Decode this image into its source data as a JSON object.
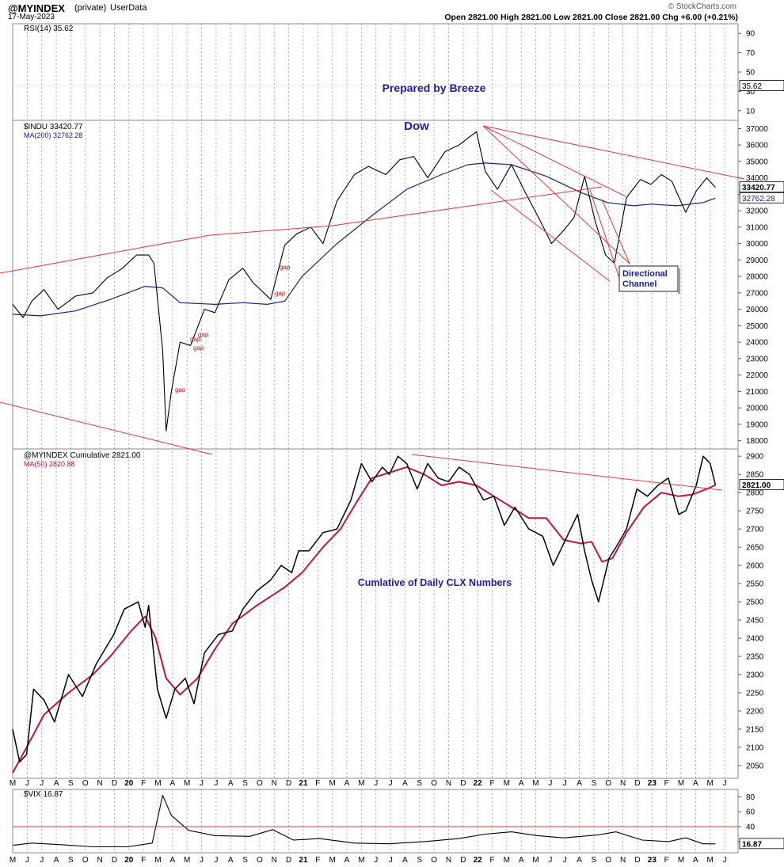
{
  "header": {
    "symbol": "@MYINDEX",
    "private_tag": "(private)",
    "userdata_tag": "UserData",
    "date": "17-May-2023",
    "ohlc": "Open 2821.00  High 2821.00  Low 2821.00  Close 2821.00  Chg +6.00 (+0.21%)",
    "watermark": "© StockCharts.com"
  },
  "annotations": {
    "prepared_by": "Prepared by Breeze",
    "dow": "Dow",
    "channel_line1": "Directional",
    "channel_line2": "Channel",
    "cumulative_note": "Cumlative of Daily CLX Numbers",
    "gap_labels": [
      "gap",
      "gap",
      "gap",
      "gap",
      "gap",
      "gao"
    ]
  },
  "colors": {
    "price": "#000000",
    "ma_blue": "#1a237e",
    "ma_red": "#c2143c",
    "trend": "#e53935",
    "grid": "#6f6fd8",
    "annotation_blue": "#1b1bb3",
    "gap_red": "#d01010"
  },
  "chart_data": [
    {
      "type": "line",
      "title": "RSI(14) 35.62",
      "series": [
        {
          "name": "RSI(14)",
          "values": [
            35.62
          ]
        }
      ],
      "y_ticks": [
        10,
        30,
        50,
        70,
        90
      ],
      "last_label": "35.62"
    },
    {
      "type": "line",
      "title": "$INDU 33420.77",
      "legend": [
        "$INDU 33420.77",
        "MA(200) 32762.28"
      ],
      "ylim": [
        17500,
        37500
      ],
      "y_ticks": [
        18000,
        19000,
        20000,
        21000,
        22000,
        23000,
        24000,
        25000,
        26000,
        27000,
        28000,
        29000,
        30000,
        31000,
        32000,
        33000,
        34000,
        35000,
        36000,
        37000
      ],
      "series": [
        {
          "name": "$INDU",
          "points": [
            [
              2019.34,
              26300
            ],
            [
              2019.4,
              25500
            ],
            [
              2019.45,
              26500
            ],
            [
              2019.52,
              27200
            ],
            [
              2019.6,
              26000
            ],
            [
              2019.7,
              26800
            ],
            [
              2019.8,
              27000
            ],
            [
              2019.88,
              27900
            ],
            [
              2019.97,
              28500
            ],
            [
              2020.05,
              29300
            ],
            [
              2020.12,
              29300
            ],
            [
              2020.15,
              28800
            ],
            [
              2020.2,
              23500
            ],
            [
              2020.22,
              18600
            ],
            [
              2020.25,
              21000
            ],
            [
              2020.3,
              24000
            ],
            [
              2020.36,
              23800
            ],
            [
              2020.44,
              26000
            ],
            [
              2020.5,
              25800
            ],
            [
              2020.58,
              27800
            ],
            [
              2020.66,
              28500
            ],
            [
              2020.72,
              27600
            ],
            [
              2020.82,
              26600
            ],
            [
              2020.9,
              29900
            ],
            [
              2020.97,
              30600
            ],
            [
              2021.05,
              31000
            ],
            [
              2021.12,
              30000
            ],
            [
              2021.2,
              32600
            ],
            [
              2021.3,
              34200
            ],
            [
              2021.38,
              34700
            ],
            [
              2021.48,
              34200
            ],
            [
              2021.56,
              35100
            ],
            [
              2021.64,
              35300
            ],
            [
              2021.72,
              34000
            ],
            [
              2021.82,
              35600
            ],
            [
              2021.9,
              36000
            ],
            [
              2021.96,
              36500
            ],
            [
              2022.0,
              36800
            ],
            [
              2022.05,
              34400
            ],
            [
              2022.12,
              33300
            ],
            [
              2022.2,
              34800
            ],
            [
              2022.28,
              33100
            ],
            [
              2022.36,
              31500
            ],
            [
              2022.43,
              30000
            ],
            [
              2022.5,
              30800
            ],
            [
              2022.56,
              31600
            ],
            [
              2022.62,
              34100
            ],
            [
              2022.68,
              31400
            ],
            [
              2022.74,
              29300
            ],
            [
              2022.79,
              28800
            ],
            [
              2022.86,
              32800
            ],
            [
              2022.94,
              33900
            ],
            [
              2023.0,
              33600
            ],
            [
              2023.06,
              34200
            ],
            [
              2023.12,
              33800
            ],
            [
              2023.2,
              31900
            ],
            [
              2023.26,
              33200
            ],
            [
              2023.32,
              34000
            ],
            [
              2023.37,
              33420.77
            ]
          ]
        },
        {
          "name": "MA(200)",
          "points": [
            [
              2019.34,
              25700
            ],
            [
              2019.5,
              25600
            ],
            [
              2019.7,
              25900
            ],
            [
              2019.9,
              26600
            ],
            [
              2020.1,
              27400
            ],
            [
              2020.2,
              27300
            ],
            [
              2020.3,
              26400
            ],
            [
              2020.5,
              26300
            ],
            [
              2020.66,
              26400
            ],
            [
              2020.8,
              26300
            ],
            [
              2020.9,
              26500
            ],
            [
              2021.0,
              28000
            ],
            [
              2021.2,
              30000
            ],
            [
              2021.4,
              31700
            ],
            [
              2021.6,
              33300
            ],
            [
              2021.8,
              34200
            ],
            [
              2021.95,
              34800
            ],
            [
              2022.05,
              34900
            ],
            [
              2022.2,
              34800
            ],
            [
              2022.4,
              34100
            ],
            [
              2022.6,
              33100
            ],
            [
              2022.75,
              32500
            ],
            [
              2022.9,
              32300
            ],
            [
              2023.0,
              32400
            ],
            [
              2023.15,
              32300
            ],
            [
              2023.3,
              32500
            ],
            [
              2023.37,
              32762.28
            ]
          ]
        }
      ],
      "last_labels": [
        "33420.77",
        "32762.28"
      ]
    },
    {
      "type": "line",
      "title": "@MYINDEX Cumulative 2821.00",
      "legend": [
        "@MYINDEX Cumulative 2821.00",
        "MA(50) 2820.88"
      ],
      "ylim": [
        2015,
        2920
      ],
      "y_ticks": [
        2050,
        2100,
        2150,
        2200,
        2250,
        2300,
        2350,
        2400,
        2450,
        2500,
        2550,
        2600,
        2650,
        2700,
        2750,
        2800,
        2850,
        2900
      ],
      "series": [
        {
          "name": "@MYINDEX Cumulative",
          "points": [
            [
              2019.34,
              2150
            ],
            [
              2019.38,
              2060
            ],
            [
              2019.42,
              2080
            ],
            [
              2019.46,
              2260
            ],
            [
              2019.52,
              2230
            ],
            [
              2019.58,
              2170
            ],
            [
              2019.66,
              2300
            ],
            [
              2019.74,
              2240
            ],
            [
              2019.82,
              2330
            ],
            [
              2019.92,
              2410
            ],
            [
              2019.98,
              2480
            ],
            [
              2020.06,
              2500
            ],
            [
              2020.1,
              2430
            ],
            [
              2020.12,
              2490
            ],
            [
              2020.17,
              2260
            ],
            [
              2020.22,
              2180
            ],
            [
              2020.27,
              2260
            ],
            [
              2020.33,
              2290
            ],
            [
              2020.38,
              2220
            ],
            [
              2020.44,
              2360
            ],
            [
              2020.52,
              2410
            ],
            [
              2020.6,
              2420
            ],
            [
              2020.66,
              2480
            ],
            [
              2020.74,
              2530
            ],
            [
              2020.82,
              2560
            ],
            [
              2020.88,
              2600
            ],
            [
              2020.94,
              2580
            ],
            [
              2020.98,
              2640
            ],
            [
              2021.04,
              2640
            ],
            [
              2021.12,
              2690
            ],
            [
              2021.2,
              2700
            ],
            [
              2021.28,
              2780
            ],
            [
              2021.34,
              2880
            ],
            [
              2021.4,
              2830
            ],
            [
              2021.46,
              2870
            ],
            [
              2021.5,
              2850
            ],
            [
              2021.55,
              2900
            ],
            [
              2021.6,
              2880
            ],
            [
              2021.66,
              2810
            ],
            [
              2021.72,
              2880
            ],
            [
              2021.78,
              2840
            ],
            [
              2021.84,
              2830
            ],
            [
              2021.9,
              2870
            ],
            [
              2021.96,
              2850
            ],
            [
              2022.04,
              2780
            ],
            [
              2022.1,
              2790
            ],
            [
              2022.16,
              2710
            ],
            [
              2022.22,
              2760
            ],
            [
              2022.3,
              2700
            ],
            [
              2022.38,
              2680
            ],
            [
              2022.44,
              2600
            ],
            [
              2022.52,
              2680
            ],
            [
              2022.58,
              2740
            ],
            [
              2022.62,
              2640
            ],
            [
              2022.66,
              2560
            ],
            [
              2022.7,
              2500
            ],
            [
              2022.76,
              2620
            ],
            [
              2022.8,
              2650
            ],
            [
              2022.86,
              2700
            ],
            [
              2022.92,
              2810
            ],
            [
              2022.98,
              2790
            ],
            [
              2023.04,
              2820
            ],
            [
              2023.1,
              2840
            ],
            [
              2023.16,
              2740
            ],
            [
              2023.2,
              2750
            ],
            [
              2023.26,
              2820
            ],
            [
              2023.3,
              2900
            ],
            [
              2023.34,
              2880
            ],
            [
              2023.37,
              2821
            ]
          ]
        },
        {
          "name": "MA(50)",
          "points": [
            [
              2019.34,
              2030
            ],
            [
              2019.42,
              2100
            ],
            [
              2019.52,
              2190
            ],
            [
              2019.66,
              2250
            ],
            [
              2019.8,
              2300
            ],
            [
              2019.9,
              2350
            ],
            [
              2020.02,
              2420
            ],
            [
              2020.1,
              2460
            ],
            [
              2020.16,
              2400
            ],
            [
              2020.22,
              2290
            ],
            [
              2020.3,
              2245
            ],
            [
              2020.4,
              2290
            ],
            [
              2020.5,
              2370
            ],
            [
              2020.6,
              2440
            ],
            [
              2020.74,
              2490
            ],
            [
              2020.9,
              2540
            ],
            [
              2021.0,
              2580
            ],
            [
              2021.12,
              2650
            ],
            [
              2021.22,
              2700
            ],
            [
              2021.32,
              2780
            ],
            [
              2021.4,
              2840
            ],
            [
              2021.5,
              2855
            ],
            [
              2021.6,
              2870
            ],
            [
              2021.7,
              2850
            ],
            [
              2021.8,
              2820
            ],
            [
              2021.9,
              2830
            ],
            [
              2022.0,
              2820
            ],
            [
              2022.1,
              2790
            ],
            [
              2022.2,
              2760
            ],
            [
              2022.3,
              2730
            ],
            [
              2022.4,
              2730
            ],
            [
              2022.5,
              2670
            ],
            [
              2022.6,
              2660
            ],
            [
              2022.66,
              2665
            ],
            [
              2022.72,
              2610
            ],
            [
              2022.78,
              2620
            ],
            [
              2022.86,
              2690
            ],
            [
              2022.96,
              2760
            ],
            [
              2023.06,
              2800
            ],
            [
              2023.16,
              2790
            ],
            [
              2023.24,
              2795
            ],
            [
              2023.32,
              2810
            ],
            [
              2023.37,
              2820.88
            ]
          ]
        }
      ],
      "last_label": "2821.00"
    },
    {
      "type": "line",
      "title": "$VIX 16.87",
      "ylim": [
        5,
        90
      ],
      "y_ticks": [
        20,
        40,
        60,
        80
      ],
      "series": [
        {
          "name": "$VIX",
          "points": [
            [
              2019.34,
              15
            ],
            [
              2019.45,
              18
            ],
            [
              2019.6,
              16
            ],
            [
              2019.8,
              13
            ],
            [
              2020.0,
              13
            ],
            [
              2020.14,
              18
            ],
            [
              2020.2,
              82
            ],
            [
              2020.25,
              55
            ],
            [
              2020.35,
              35
            ],
            [
              2020.5,
              28
            ],
            [
              2020.7,
              27
            ],
            [
              2020.83,
              36
            ],
            [
              2020.95,
              22
            ],
            [
              2021.1,
              24
            ],
            [
              2021.3,
              18
            ],
            [
              2021.5,
              17
            ],
            [
              2021.7,
              20
            ],
            [
              2021.9,
              24
            ],
            [
              2022.05,
              30
            ],
            [
              2022.2,
              33
            ],
            [
              2022.35,
              28
            ],
            [
              2022.5,
              25
            ],
            [
              2022.7,
              29
            ],
            [
              2022.8,
              33
            ],
            [
              2022.95,
              22
            ],
            [
              2023.1,
              20
            ],
            [
              2023.2,
              25
            ],
            [
              2023.3,
              17
            ],
            [
              2023.37,
              16.87
            ]
          ]
        }
      ],
      "reference_line": 40,
      "last_label": "16.87"
    }
  ],
  "x_axis": {
    "month_labels": [
      "M",
      "J",
      "J",
      "A",
      "S",
      "O",
      "N",
      "D",
      "20",
      "F",
      "M",
      "A",
      "M",
      "J",
      "J",
      "A",
      "S",
      "O",
      "N",
      "D",
      "21",
      "F",
      "M",
      "A",
      "M",
      "J",
      "J",
      "A",
      "S",
      "O",
      "N",
      "D",
      "22",
      "F",
      "M",
      "A",
      "M",
      "J",
      "J",
      "A",
      "S",
      "O",
      "N",
      "D",
      "23",
      "F",
      "M",
      "A",
      "M",
      "J"
    ],
    "start": 2019.34,
    "step": 0.08333
  }
}
